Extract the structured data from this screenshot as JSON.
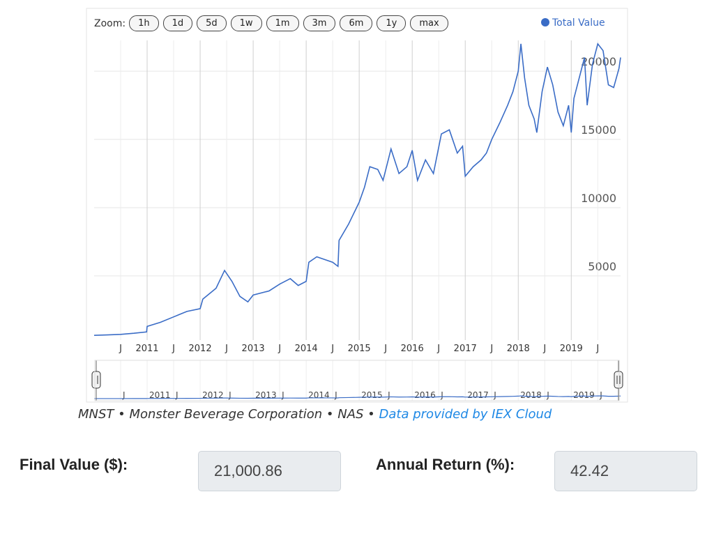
{
  "zoom": {
    "label": "Zoom:",
    "buttons": [
      "1h",
      "1d",
      "5d",
      "1w",
      "1m",
      "3m",
      "6m",
      "1y",
      "max"
    ]
  },
  "chart_data": {
    "type": "line",
    "x": [
      2010.0,
      2010.25,
      2010.5,
      2010.75,
      2010.99,
      2011.0,
      2011.25,
      2011.5,
      2011.75,
      2012.0,
      2012.05,
      2012.3,
      2012.46,
      2012.6,
      2012.75,
      2012.9,
      2013.0,
      2013.3,
      2013.5,
      2013.7,
      2013.85,
      2014.0,
      2014.05,
      2014.2,
      2014.5,
      2014.6,
      2014.62,
      2014.8,
      2015.0,
      2015.1,
      2015.2,
      2015.35,
      2015.45,
      2015.6,
      2015.75,
      2015.9,
      2016.0,
      2016.1,
      2016.25,
      2016.4,
      2016.55,
      2016.7,
      2016.85,
      2016.95,
      2017.0,
      2017.15,
      2017.3,
      2017.4,
      2017.5,
      2017.65,
      2017.8,
      2017.9,
      2018.0,
      2018.05,
      2018.12,
      2018.2,
      2018.3,
      2018.35,
      2018.45,
      2018.55,
      2018.65,
      2018.75,
      2018.85,
      2018.95,
      2019.0,
      2019.05,
      2019.15,
      2019.25,
      2019.3,
      2019.4,
      2019.5,
      2019.6,
      2019.7,
      2019.8,
      2019.9,
      2019.93
    ],
    "series": [
      {
        "name": "Total Value",
        "color": "#3a6cc6",
        "values": [
          650,
          680,
          720,
          800,
          900,
          1300,
          1600,
          2000,
          2400,
          2600,
          3300,
          4100,
          5400,
          4600,
          3500,
          3100,
          3600,
          3900,
          4400,
          4800,
          4300,
          4600,
          6000,
          6400,
          6000,
          5700,
          7600,
          8800,
          10400,
          11500,
          13000,
          12800,
          12000,
          14300,
          12500,
          13000,
          14200,
          12000,
          13500,
          12500,
          15400,
          15700,
          14000,
          14500,
          12300,
          13000,
          13500,
          14000,
          15000,
          16200,
          17500,
          18500,
          20000,
          22000,
          19500,
          17500,
          16500,
          15500,
          18500,
          20300,
          19000,
          17000,
          16000,
          17500,
          15500,
          18000,
          19500,
          21000,
          17500,
          20500,
          22000,
          21500,
          19000,
          18800,
          20200,
          21000
        ]
      }
    ],
    "xlim": [
      2010.0,
      2019.93
    ],
    "xticks": [
      {
        "value": 2010.5,
        "label": "J"
      },
      2011,
      {
        "value": 2011.5,
        "label": "J"
      },
      2012,
      {
        "value": 2012.5,
        "label": "J"
      },
      2013,
      {
        "value": 2013.5,
        "label": "J"
      },
      2014,
      {
        "value": 2014.5,
        "label": "J"
      },
      2015,
      {
        "value": 2015.5,
        "label": "J"
      },
      2016,
      {
        "value": 2016.5,
        "label": "J"
      },
      2017,
      {
        "value": 2017.5,
        "label": "J"
      },
      2018,
      {
        "value": 2018.5,
        "label": "J"
      },
      2019,
      {
        "value": 2019.5,
        "label": "J"
      }
    ],
    "ylim": [
      300,
      22250
    ],
    "yticks": [
      5000,
      10000,
      15000,
      20000
    ],
    "grid": true,
    "legend": "top-right"
  },
  "caption": {
    "text": "MNST • Monster Beverage Corporation • NAS •",
    "link": "Data provided by IEX Cloud"
  },
  "results": [
    {
      "label": "Final Value ($):",
      "value": "21,000.86"
    },
    {
      "label": "Annual Return (%):",
      "value": "42.42"
    }
  ]
}
